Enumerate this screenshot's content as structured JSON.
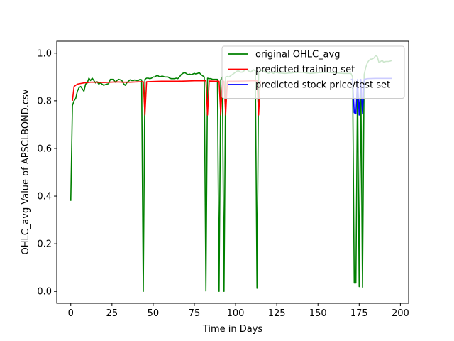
{
  "chart_data": {
    "type": "line",
    "title": "",
    "xlabel": "Time in Days",
    "ylabel": "OHLC_avg Value of APSCLBOND.csv",
    "xlim": [
      -8.5,
      205
    ],
    "ylim": [
      -0.05,
      1.05
    ],
    "xticks": [
      0,
      25,
      50,
      75,
      100,
      125,
      150,
      175,
      200
    ],
    "yticks": [
      0.0,
      0.2,
      0.4,
      0.6,
      0.8,
      1.0
    ],
    "ytick_labels": [
      "0.0",
      "0.2",
      "0.4",
      "0.6",
      "0.8",
      "1.0"
    ],
    "legend_position": "top-right",
    "grid": false,
    "series": [
      {
        "name": "original OHLC_avg",
        "color": "#008000",
        "points": [
          [
            0,
            0.38
          ],
          [
            1,
            0.78
          ],
          [
            2,
            0.8
          ],
          [
            3,
            0.81
          ],
          [
            4,
            0.84
          ],
          [
            5,
            0.855
          ],
          [
            6,
            0.86
          ],
          [
            7,
            0.85
          ],
          [
            8,
            0.84
          ],
          [
            9,
            0.87
          ],
          [
            10,
            0.875
          ],
          [
            11,
            0.895
          ],
          [
            12,
            0.885
          ],
          [
            13,
            0.895
          ],
          [
            14,
            0.885
          ],
          [
            15,
            0.875
          ],
          [
            16,
            0.88
          ],
          [
            17,
            0.87
          ],
          [
            18,
            0.875
          ],
          [
            19,
            0.87
          ],
          [
            20,
            0.865
          ],
          [
            21,
            0.868
          ],
          [
            22,
            0.87
          ],
          [
            23,
            0.872
          ],
          [
            24,
            0.89
          ],
          [
            25,
            0.89
          ],
          [
            26,
            0.89
          ],
          [
            27,
            0.878
          ],
          [
            28,
            0.885
          ],
          [
            29,
            0.89
          ],
          [
            30,
            0.888
          ],
          [
            31,
            0.885
          ],
          [
            32,
            0.872
          ],
          [
            33,
            0.865
          ],
          [
            34,
            0.875
          ],
          [
            35,
            0.882
          ],
          [
            36,
            0.888
          ],
          [
            37,
            0.885
          ],
          [
            38,
            0.885
          ],
          [
            39,
            0.888
          ],
          [
            40,
            0.885
          ],
          [
            41,
            0.885
          ],
          [
            42,
            0.89
          ],
          [
            43,
            0.888
          ],
          [
            44,
            0.0
          ],
          [
            45,
            0.89
          ],
          [
            46,
            0.895
          ],
          [
            47,
            0.895
          ],
          [
            48,
            0.893
          ],
          [
            49,
            0.895
          ],
          [
            50,
            0.9
          ],
          [
            51,
            0.9
          ],
          [
            52,
            0.905
          ],
          [
            53,
            0.905
          ],
          [
            54,
            0.9
          ],
          [
            55,
            0.903
          ],
          [
            56,
            0.903
          ],
          [
            57,
            0.9
          ],
          [
            58,
            0.9
          ],
          [
            59,
            0.9
          ],
          [
            60,
            0.895
          ],
          [
            61,
            0.893
          ],
          [
            62,
            0.893
          ],
          [
            63,
            0.893
          ],
          [
            64,
            0.895
          ],
          [
            65,
            0.893
          ],
          [
            66,
            0.9
          ],
          [
            67,
            0.91
          ],
          [
            68,
            0.915
          ],
          [
            69,
            0.918
          ],
          [
            70,
            0.915
          ],
          [
            71,
            0.91
          ],
          [
            72,
            0.912
          ],
          [
            73,
            0.91
          ],
          [
            74,
            0.912
          ],
          [
            75,
            0.915
          ],
          [
            76,
            0.912
          ],
          [
            77,
            0.915
          ],
          [
            78,
            0.918
          ],
          [
            79,
            0.91
          ],
          [
            80,
            0.905
          ],
          [
            81,
            0.9
          ],
          [
            82,
            0.002
          ],
          [
            83,
            0.895
          ],
          [
            84,
            0.893
          ],
          [
            85,
            0.893
          ],
          [
            86,
            0.89
          ],
          [
            87,
            0.89
          ],
          [
            88,
            0.89
          ],
          [
            89,
            0.89
          ],
          [
            90,
            0.0
          ],
          [
            91,
            0.888
          ],
          [
            92,
            0.9
          ],
          [
            93,
            0.0
          ],
          [
            94,
            0.9
          ],
          [
            95,
            0.902
          ],
          [
            96,
            0.9
          ],
          [
            97,
            0.905
          ],
          [
            98,
            0.91
          ],
          [
            99,
            0.915
          ],
          [
            100,
            0.92
          ],
          [
            101,
            0.925
          ],
          [
            102,
            0.925
          ],
          [
            103,
            0.92
          ],
          [
            104,
            0.92
          ],
          [
            105,
            0.925
          ],
          [
            106,
            0.93
          ],
          [
            107,
            0.93
          ],
          [
            108,
            0.925
          ],
          [
            109,
            0.92
          ],
          [
            110,
            0.925
          ],
          [
            111,
            0.93
          ],
          [
            112,
            0.925
          ],
          [
            113,
            0.013
          ],
          [
            114,
            0.92
          ],
          [
            115,
            0.925
          ],
          [
            116,
            0.93
          ],
          [
            117,
            0.925
          ],
          [
            118,
            0.92
          ],
          [
            119,
            0.918
          ],
          [
            120,
            0.915
          ],
          [
            121,
            0.92
          ],
          [
            122,
            0.918
          ],
          [
            123,
            0.915
          ],
          [
            124,
            0.92
          ],
          [
            125,
            0.918
          ],
          [
            130,
            0.915
          ],
          [
            135,
            0.918
          ],
          [
            140,
            0.92
          ],
          [
            145,
            0.915
          ],
          [
            150,
            0.918
          ],
          [
            155,
            0.92
          ],
          [
            160,
            0.918
          ],
          [
            165,
            0.915
          ],
          [
            170,
            0.915
          ],
          [
            171,
            0.9
          ],
          [
            172,
            0.035
          ],
          [
            173,
            0.035
          ],
          [
            174,
            0.88
          ],
          [
            175,
            0.02
          ],
          [
            176,
            0.88
          ],
          [
            177,
            0.018
          ],
          [
            178,
            0.91
          ],
          [
            179,
            0.94
          ],
          [
            180,
            0.96
          ],
          [
            181,
            0.97
          ],
          [
            182,
            0.975
          ],
          [
            183,
            0.975
          ],
          [
            184,
            0.98
          ],
          [
            185,
            0.99
          ],
          [
            186,
            0.985
          ],
          [
            187,
            0.96
          ],
          [
            188,
            0.965
          ],
          [
            189,
            0.97
          ],
          [
            190,
            0.96
          ],
          [
            191,
            0.965
          ],
          [
            192,
            0.965
          ],
          [
            193,
            0.965
          ],
          [
            194,
            0.967
          ],
          [
            195,
            0.97
          ]
        ]
      },
      {
        "name": "predicted training set",
        "color": "#ff0000",
        "points": [
          [
            1,
            0.8
          ],
          [
            2,
            0.86
          ],
          [
            4,
            0.87
          ],
          [
            8,
            0.875
          ],
          [
            12,
            0.878
          ],
          [
            16,
            0.878
          ],
          [
            20,
            0.877
          ],
          [
            24,
            0.878
          ],
          [
            28,
            0.879
          ],
          [
            32,
            0.878
          ],
          [
            36,
            0.878
          ],
          [
            40,
            0.879
          ],
          [
            43,
            0.88
          ],
          [
            44,
            0.88
          ],
          [
            45,
            0.74
          ],
          [
            46,
            0.88
          ],
          [
            50,
            0.881
          ],
          [
            55,
            0.882
          ],
          [
            60,
            0.882
          ],
          [
            65,
            0.882
          ],
          [
            70,
            0.883
          ],
          [
            75,
            0.884
          ],
          [
            80,
            0.884
          ],
          [
            82,
            0.884
          ],
          [
            83,
            0.74
          ],
          [
            84,
            0.883
          ],
          [
            88,
            0.882
          ],
          [
            90,
            0.882
          ],
          [
            91,
            0.74
          ],
          [
            92,
            0.882
          ],
          [
            93,
            0.882
          ],
          [
            94,
            0.74
          ],
          [
            95,
            0.882
          ],
          [
            98,
            0.882
          ],
          [
            105,
            0.883
          ],
          [
            110,
            0.884
          ],
          [
            113,
            0.884
          ],
          [
            114,
            0.74
          ],
          [
            115,
            0.884
          ]
        ]
      },
      {
        "name": "predicted stock price/test set",
        "color": "#0000ff",
        "points": [
          [
            170,
            0.89
          ],
          [
            171,
            0.89
          ],
          [
            172,
            0.75
          ],
          [
            173,
            0.745
          ],
          [
            174,
            0.89
          ],
          [
            175,
            0.74
          ],
          [
            176,
            0.89
          ],
          [
            177,
            0.745
          ],
          [
            178,
            0.89
          ],
          [
            180,
            0.893
          ],
          [
            185,
            0.894
          ],
          [
            190,
            0.894
          ],
          [
            195,
            0.894
          ]
        ]
      }
    ]
  }
}
